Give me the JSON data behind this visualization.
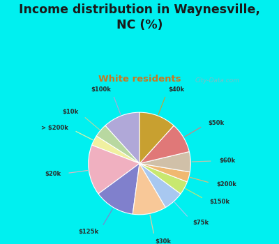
{
  "title": "Income distribution in Waynesville,\nNC (%)",
  "subtitle": "White residents",
  "title_color": "#1a1a1a",
  "subtitle_color": "#c87820",
  "background_cyan": "#00f0f0",
  "background_chart": "#d8f0e0",
  "labels": [
    "$100k",
    "$10k",
    "> $200k",
    "$20k",
    "$125k",
    "$30k",
    "$75k",
    "$150k",
    "$200k",
    "$60k",
    "$50k",
    "$40k"
  ],
  "values": [
    11,
    4,
    3,
    15,
    12,
    10,
    6,
    4,
    3,
    6,
    9,
    11
  ],
  "colors": [
    "#b0a8d8",
    "#b8d8a0",
    "#f0f0a0",
    "#f0b0c0",
    "#8080cc",
    "#f8c898",
    "#a8c8f0",
    "#c8e870",
    "#f0b870",
    "#d0c0a8",
    "#e07878",
    "#c8a030"
  ],
  "startangle": 90,
  "watermark": "City-Data.com"
}
